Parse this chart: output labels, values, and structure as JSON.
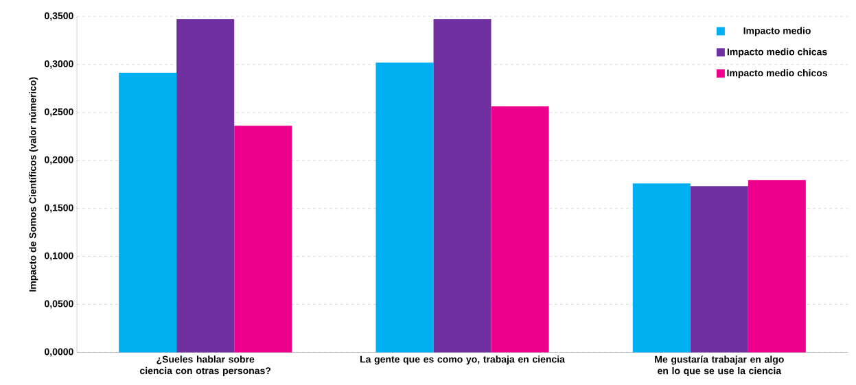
{
  "chart_data": {
    "type": "bar",
    "ylabel": "Impacto de Somos Científicos (valor númerico)",
    "categories": [
      "¿Sueles hablar sobre ciencia con otras personas?",
      "La gente que es como yo, trabaja en ciencia",
      "Me gustaría trabajar en algo en lo que se use la ciencia"
    ],
    "series": [
      {
        "name": "Impacto medio",
        "color": "#00b0f0",
        "values": [
          0.2913,
          0.302,
          0.176
        ]
      },
      {
        "name": "Impacto medio chicas",
        "color": "#7030a0",
        "values": [
          0.3472,
          0.3472,
          0.1732
        ]
      },
      {
        "name": "Impacto medio chicos",
        "color": "#ec008c",
        "values": [
          0.2362,
          0.2563,
          0.1797
        ]
      }
    ],
    "ylim": [
      0,
      0.35
    ],
    "yticks": [
      {
        "value": 0,
        "label": "0,0000"
      },
      {
        "value": 0.05,
        "label": "0,0500"
      },
      {
        "value": 0.1,
        "label": "0,1000"
      },
      {
        "value": 0.15,
        "label": "0,1500"
      },
      {
        "value": 0.2,
        "label": "0,2000"
      },
      {
        "value": 0.25,
        "label": "0,2500"
      },
      {
        "value": 0.3,
        "label": "0,3000"
      },
      {
        "value": 0.35,
        "label": "0,3500"
      }
    ],
    "grid": "y",
    "legend": "top right"
  }
}
